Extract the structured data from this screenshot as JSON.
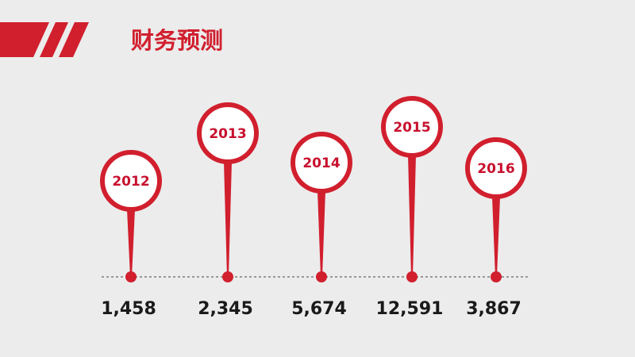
{
  "header": {
    "title": "财务预测"
  },
  "items": [
    {
      "year": "2012",
      "value": "1,458"
    },
    {
      "year": "2013",
      "value": "2,345"
    },
    {
      "year": "2014",
      "value": "5,674"
    },
    {
      "year": "2015",
      "value": "12,591"
    },
    {
      "year": "2016",
      "value": "3,867"
    }
  ]
}
